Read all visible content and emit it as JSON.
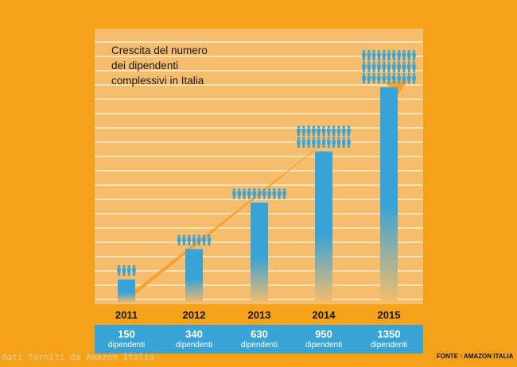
{
  "chart_data": {
    "type": "bar",
    "title": [
      "Crescita del numero",
      "dei dipendenti",
      "complessivi in Italia"
    ],
    "categories": [
      "2011",
      "2012",
      "2013",
      "2014",
      "2015"
    ],
    "values": [
      150,
      340,
      630,
      950,
      1350
    ],
    "value_labels": [
      "150",
      "340",
      "630",
      "950",
      "1350"
    ],
    "unit_label": "dipendenti",
    "people_icon_rows": [
      [
        1,
        4
      ],
      [
        1,
        7
      ],
      [
        1,
        11
      ],
      [
        2,
        11
      ],
      [
        3,
        11
      ]
    ],
    "grid": true,
    "trend_arrow": true,
    "colors": {
      "background": "#f3a21a",
      "panel": "#f6bd6c",
      "bar_top": "#3aa3d6",
      "bar_bottom": "#f6bd6c",
      "arrow": "#f5a02a",
      "icon": "#3aa3d6",
      "count_band": "#3aa3d6"
    }
  },
  "source": "FONTE : AMAZON ITALIA",
  "watermark": "dati forniti da Amazon Italia"
}
